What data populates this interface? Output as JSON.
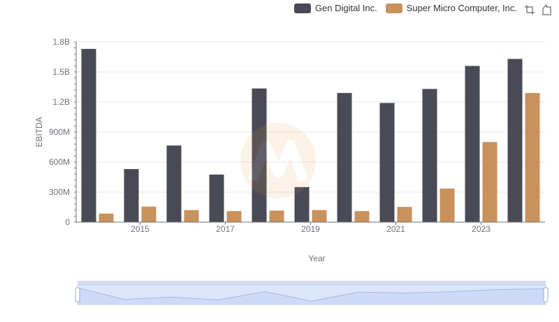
{
  "legend": {
    "items": [
      {
        "label": "Gen Digital Inc.",
        "color": "#4a4a56"
      },
      {
        "label": "Super Micro Computer, Inc.",
        "color": "#c9915b"
      }
    ]
  },
  "toolbox": {
    "icons": [
      "zoom-icon",
      "restore-icon"
    ]
  },
  "chart_data": {
    "type": "bar",
    "categories": [
      "2014",
      "2015",
      "2016",
      "2017",
      "2018",
      "2019",
      "2020",
      "2021",
      "2022",
      "2023",
      "2024"
    ],
    "x_tick_labels": [
      "2015",
      "2017",
      "2019",
      "2021",
      "2023"
    ],
    "series": [
      {
        "name": "Gen Digital Inc.",
        "color": "#4a4a56",
        "values": [
          1730000000,
          530000000,
          765000000,
          475000000,
          1335000000,
          350000000,
          1290000000,
          1190000000,
          1330000000,
          1560000000,
          1630000000
        ]
      },
      {
        "name": "Super Micro Computer, Inc.",
        "color": "#c9915b",
        "values": [
          85000000,
          155000000,
          120000000,
          110000000,
          115000000,
          120000000,
          110000000,
          152000000,
          335000000,
          800000000,
          1290000000
        ]
      }
    ],
    "ylabel": "EBITDA",
    "xlabel": "Year",
    "ylim": [
      0,
      1800000000
    ],
    "y_ticks": [
      0,
      300000000,
      600000000,
      900000000,
      1200000000,
      1500000000,
      1800000000
    ],
    "y_tick_labels": [
      "0",
      "300M",
      "600M",
      "900M",
      "1.2B",
      "1.5B",
      "1.8B"
    ],
    "grid": true,
    "legend_position": "top-right",
    "data_zoom": {
      "start": 0,
      "end": 100
    }
  }
}
